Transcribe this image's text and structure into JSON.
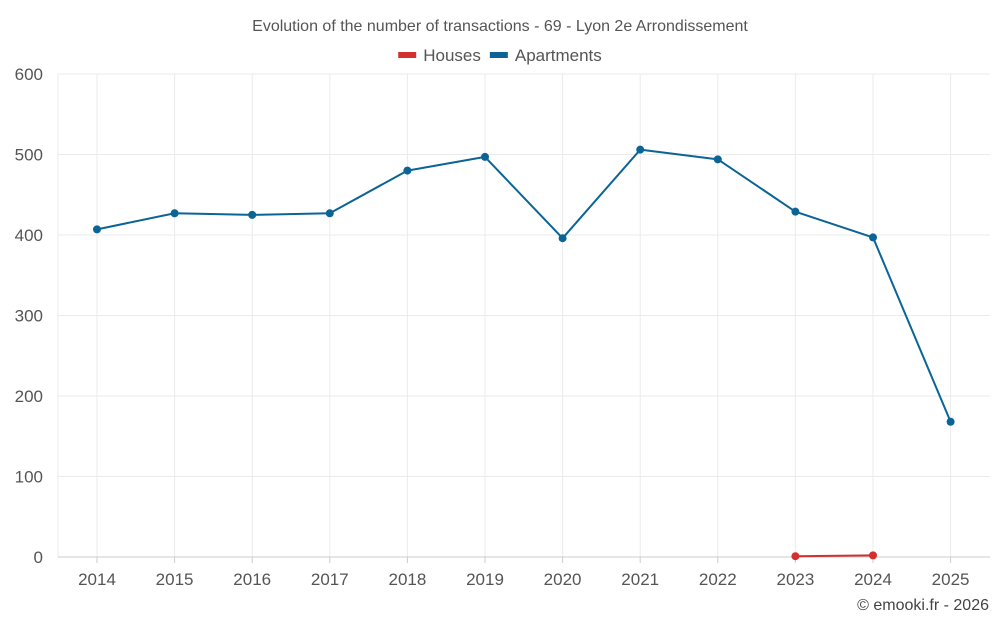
{
  "chart_data": {
    "type": "line",
    "title": "Evolution of the number of transactions - 69 - Lyon 2e Arrondissement",
    "categories": [
      "2014",
      "2015",
      "2016",
      "2017",
      "2018",
      "2019",
      "2020",
      "2021",
      "2022",
      "2023",
      "2024",
      "2025"
    ],
    "series": [
      {
        "name": "Houses",
        "color": "#d32f2f",
        "values": [
          null,
          null,
          null,
          null,
          null,
          null,
          null,
          null,
          null,
          1,
          2,
          null
        ]
      },
      {
        "name": "Apartments",
        "color": "#0a6496",
        "values": [
          407,
          427,
          425,
          427,
          480,
          497,
          396,
          506,
          494,
          429,
          397,
          168
        ]
      }
    ],
    "xlabel": "",
    "ylabel": "",
    "ylim": [
      0,
      600
    ],
    "yticks": [
      0,
      100,
      200,
      300,
      400,
      500,
      600
    ],
    "grid": true,
    "legend_position": "top-center"
  },
  "credit": "© emooki.fr - 2026"
}
